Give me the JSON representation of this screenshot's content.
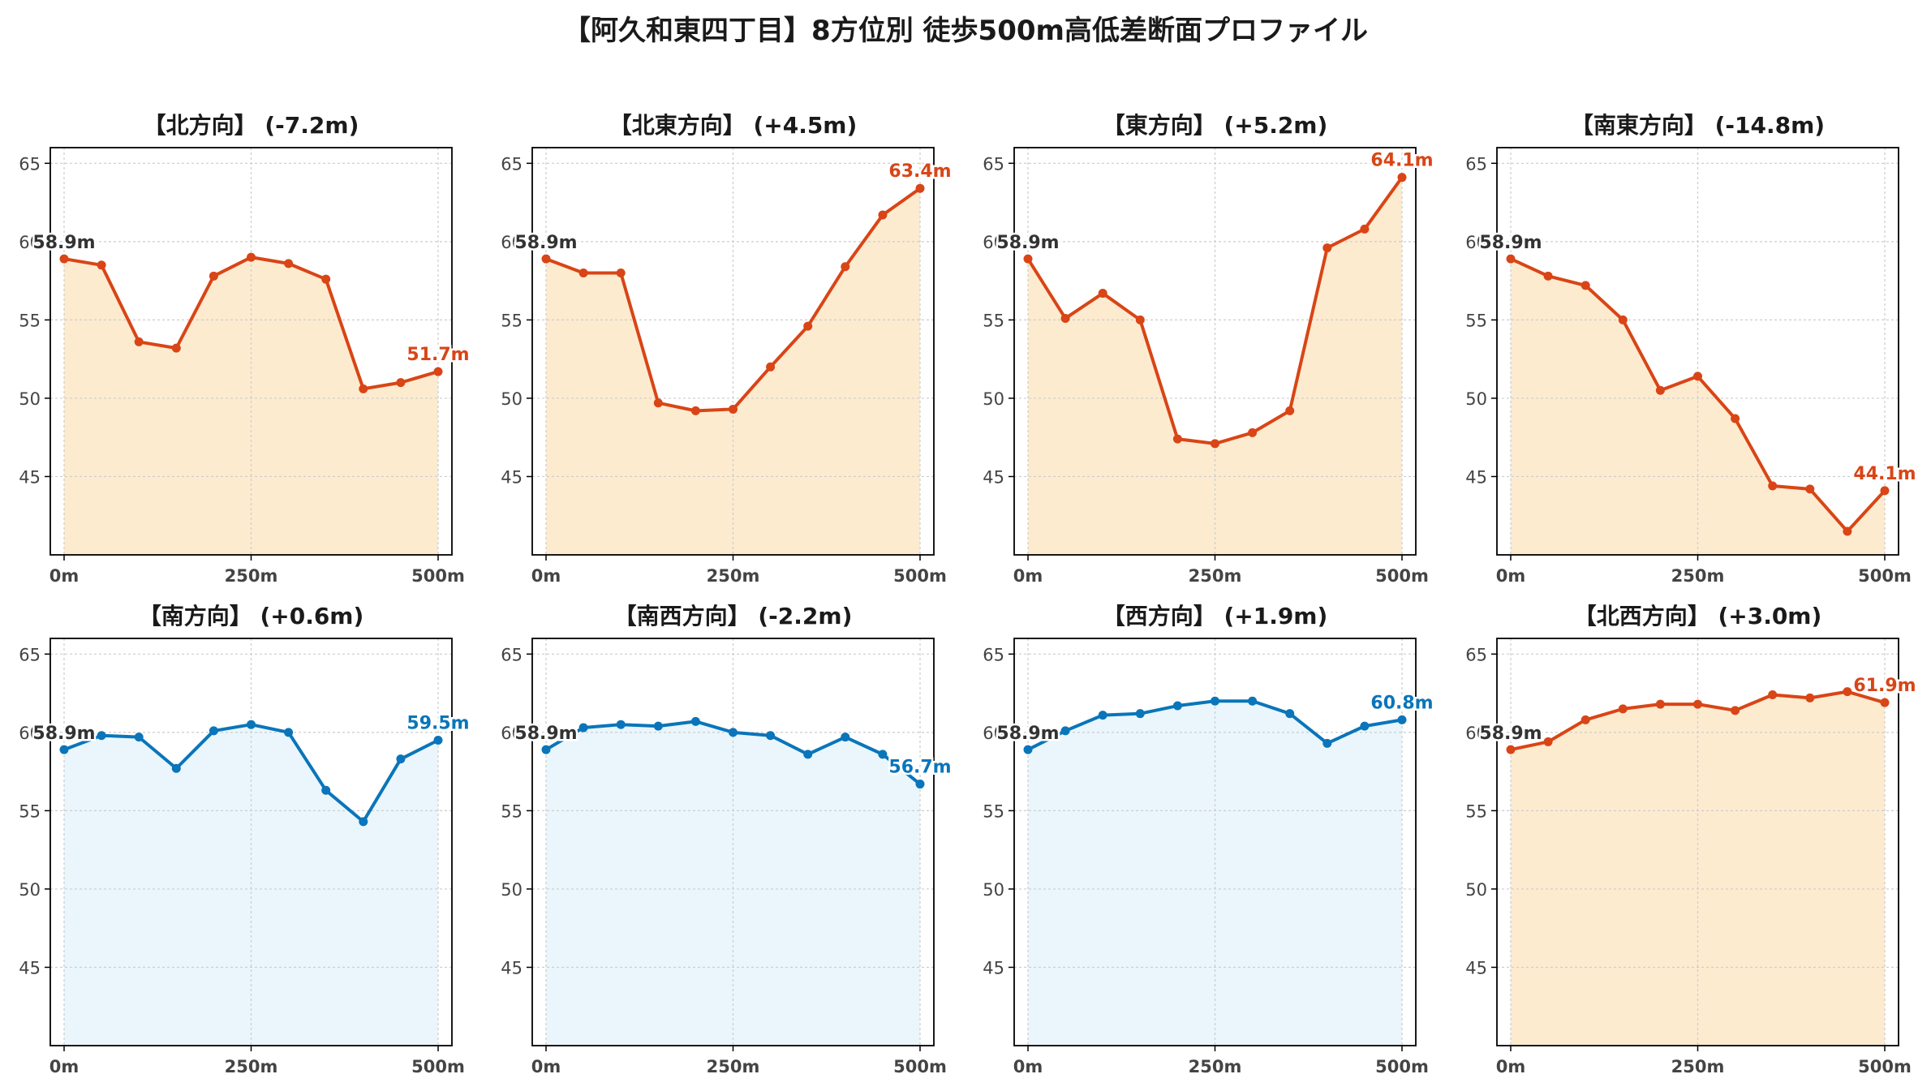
{
  "title": "【阿久和東四丁目】8方位別 徒歩500m高低差断面プロファイル",
  "colors": {
    "up_line": "#d94516",
    "up_fill": "#fdebd0",
    "down_line": "#0a75ba",
    "down_fill": "#eaf6fb",
    "start_label": "#333333",
    "axis_text": "#444444",
    "grid": "#cccccc"
  },
  "chart_data": [
    {
      "type": "area",
      "title": "【北方向】 (-7.2m)",
      "x": [
        0,
        50,
        100,
        150,
        200,
        250,
        300,
        350,
        400,
        450,
        500
      ],
      "values": [
        58.9,
        58.5,
        53.6,
        53.2,
        57.8,
        59.0,
        58.6,
        57.6,
        50.6,
        51.0,
        51.7
      ],
      "start_label": "58.9m",
      "end_label": "51.7m",
      "theme": "up",
      "xticks": [
        "0m",
        "250m",
        "500m"
      ],
      "yticks": [
        "45",
        "50",
        "55",
        "60",
        "65"
      ],
      "ylim": [
        40,
        66
      ]
    },
    {
      "type": "area",
      "title": "【北東方向】 (+4.5m)",
      "x": [
        0,
        50,
        100,
        150,
        200,
        250,
        300,
        350,
        400,
        450,
        500
      ],
      "values": [
        58.9,
        58.0,
        58.0,
        49.7,
        49.2,
        49.3,
        52.0,
        54.6,
        58.4,
        61.7,
        63.4
      ],
      "start_label": "58.9m",
      "end_label": "63.4m",
      "theme": "up",
      "xticks": [
        "0m",
        "250m",
        "500m"
      ],
      "yticks": [
        "45",
        "50",
        "55",
        "60",
        "65"
      ],
      "ylim": [
        40,
        66
      ]
    },
    {
      "type": "area",
      "title": "【東方向】 (+5.2m)",
      "x": [
        0,
        50,
        100,
        150,
        200,
        250,
        300,
        350,
        400,
        450,
        500
      ],
      "values": [
        58.9,
        55.1,
        56.7,
        55.0,
        47.4,
        47.1,
        47.8,
        49.2,
        59.6,
        60.8,
        64.1
      ],
      "start_label": "58.9m",
      "end_label": "64.1m",
      "theme": "up",
      "xticks": [
        "0m",
        "250m",
        "500m"
      ],
      "yticks": [
        "45",
        "50",
        "55",
        "60",
        "65"
      ],
      "ylim": [
        40,
        66
      ]
    },
    {
      "type": "area",
      "title": "【南東方向】 (-14.8m)",
      "x": [
        0,
        50,
        100,
        150,
        200,
        250,
        300,
        350,
        400,
        450,
        500
      ],
      "values": [
        58.9,
        57.8,
        57.2,
        55.0,
        50.5,
        51.4,
        48.7,
        44.4,
        44.2,
        41.5,
        44.1
      ],
      "start_label": "58.9m",
      "end_label": "44.1m",
      "theme": "up",
      "xticks": [
        "0m",
        "250m",
        "500m"
      ],
      "yticks": [
        "45",
        "50",
        "55",
        "60",
        "65"
      ],
      "ylim": [
        40,
        66
      ]
    },
    {
      "type": "area",
      "title": "【南方向】 (+0.6m)",
      "x": [
        0,
        50,
        100,
        150,
        200,
        250,
        300,
        350,
        400,
        450,
        500
      ],
      "values": [
        58.9,
        59.8,
        59.7,
        57.7,
        60.1,
        60.5,
        60.0,
        56.3,
        54.3,
        58.3,
        59.5
      ],
      "start_label": "58.9m",
      "end_label": "59.5m",
      "theme": "down",
      "xticks": [
        "0m",
        "250m",
        "500m"
      ],
      "yticks": [
        "45",
        "50",
        "55",
        "60",
        "65"
      ],
      "ylim": [
        40,
        66
      ]
    },
    {
      "type": "area",
      "title": "【南西方向】 (-2.2m)",
      "x": [
        0,
        50,
        100,
        150,
        200,
        250,
        300,
        350,
        400,
        450,
        500
      ],
      "values": [
        58.9,
        60.3,
        60.5,
        60.4,
        60.7,
        60.0,
        59.8,
        58.6,
        59.7,
        58.6,
        56.7
      ],
      "start_label": "58.9m",
      "end_label": "56.7m",
      "theme": "down",
      "xticks": [
        "0m",
        "250m",
        "500m"
      ],
      "yticks": [
        "45",
        "50",
        "55",
        "60",
        "65"
      ],
      "ylim": [
        40,
        66
      ]
    },
    {
      "type": "area",
      "title": "【西方向】 (+1.9m)",
      "x": [
        0,
        50,
        100,
        150,
        200,
        250,
        300,
        350,
        400,
        450,
        500
      ],
      "values": [
        58.9,
        60.1,
        61.1,
        61.2,
        61.7,
        62.0,
        62.0,
        61.2,
        59.3,
        60.4,
        60.8
      ],
      "start_label": "58.9m",
      "end_label": "60.8m",
      "theme": "down",
      "xticks": [
        "0m",
        "250m",
        "500m"
      ],
      "yticks": [
        "45",
        "50",
        "55",
        "60",
        "65"
      ],
      "ylim": [
        40,
        66
      ]
    },
    {
      "type": "area",
      "title": "【北西方向】 (+3.0m)",
      "x": [
        0,
        50,
        100,
        150,
        200,
        250,
        300,
        350,
        400,
        450,
        500
      ],
      "values": [
        58.9,
        59.4,
        60.8,
        61.5,
        61.8,
        61.8,
        61.4,
        62.4,
        62.2,
        62.6,
        61.9
      ],
      "start_label": "58.9m",
      "end_label": "61.9m",
      "theme": "up",
      "xticks": [
        "0m",
        "250m",
        "500m"
      ],
      "yticks": [
        "45",
        "50",
        "55",
        "60",
        "65"
      ],
      "ylim": [
        40,
        66
      ]
    }
  ]
}
